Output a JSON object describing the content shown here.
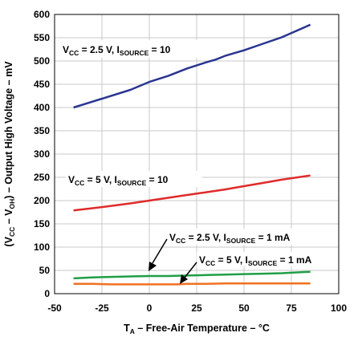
{
  "chart_data": {
    "type": "line",
    "xlabel": {
      "main": "T",
      "sub": "A",
      "rest": " – Free-Air Temperature – °C"
    },
    "ylabel": {
      "p1": "(V",
      "s1": "CC",
      "p2": " – V",
      "s2": "OH",
      "p3": ") – Output High Voltage – mV"
    },
    "xlim": [
      -50,
      100
    ],
    "ylim": [
      0,
      600
    ],
    "xticks": [
      -50,
      -25,
      0,
      25,
      50,
      75,
      100
    ],
    "yticks": [
      0,
      50,
      100,
      150,
      200,
      250,
      300,
      350,
      400,
      450,
      500,
      550,
      600
    ],
    "xtick_labels": [
      "-50",
      "-25",
      "0",
      "25",
      "50",
      "75",
      "100"
    ],
    "ytick_labels": [
      "0",
      "50",
      "100",
      "150",
      "200",
      "250",
      "300",
      "350",
      "400",
      "450",
      "500",
      "550",
      "600"
    ],
    "grid": true,
    "series": [
      {
        "color": "#2a3590",
        "x": [
          -40,
          -25,
          -10,
          0,
          10,
          20,
          30,
          35,
          40,
          50,
          60,
          70,
          85
        ],
        "y": [
          400,
          419,
          438,
          455,
          468,
          484,
          497,
          503,
          511,
          523,
          537,
          551,
          578
        ]
      },
      {
        "color": "#e02a2a",
        "x": [
          -40,
          -25,
          -10,
          0,
          10,
          20,
          30,
          40,
          50,
          60,
          70,
          85
        ],
        "y": [
          179,
          186,
          194,
          200,
          206,
          212,
          218,
          224,
          231,
          238,
          245,
          254
        ]
      },
      {
        "color": "#1f9e46",
        "x": [
          -40,
          -30,
          -20,
          -10,
          0,
          10,
          20,
          30,
          40,
          50,
          60,
          70,
          85
        ],
        "y": [
          33,
          35,
          36,
          37,
          38,
          38,
          39,
          40,
          41,
          42,
          43,
          44,
          47
        ]
      },
      {
        "color": "#f07020",
        "x": [
          -40,
          -30,
          -20,
          -10,
          0,
          10,
          15,
          20,
          30,
          40,
          50,
          60,
          70,
          85
        ],
        "y": [
          21,
          21,
          20,
          20,
          20,
          20,
          20,
          21,
          21,
          22,
          22,
          22,
          22,
          22
        ]
      }
    ],
    "annotations": [
      {
        "v": "V",
        "vsub": "CC",
        "mid": " = 2.5 V, I",
        "isub": "SOURCE",
        "end": " = 10"
      },
      {
        "v": "V",
        "vsub": "CC",
        "mid": " = 5 V, I",
        "isub": "SOURCE",
        "end": " = 10"
      },
      {
        "v": "V",
        "vsub": "CC",
        "mid": " = 2.5 V, I",
        "isub": "SOURCE",
        "end": " = 1 mA"
      },
      {
        "v": "V",
        "vsub": "CC",
        "mid": " = 5 V, I",
        "isub": "SOURCE",
        "end": " = 1 mA"
      }
    ]
  }
}
